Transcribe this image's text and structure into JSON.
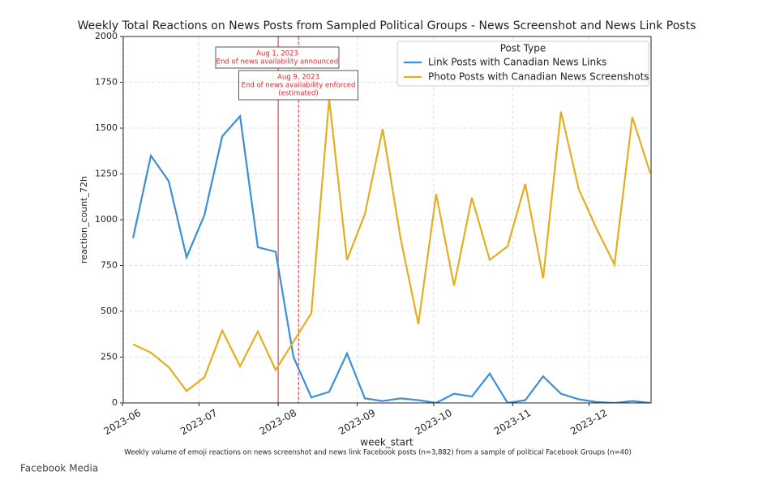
{
  "chart_data": {
    "type": "line",
    "title": "Weekly Total Reactions on News Posts from Sampled Political Groups - News Screenshot and News Link Posts",
    "x_label": "week_start",
    "y_label": "reaction_count_72h",
    "caption": "Weekly volume of emoji reactions on news screenshot and news link Facebook posts (n=3,882) from a sample of political Facebook Groups (n=40)",
    "source": "Facebook Media",
    "legend_title": "Post Type",
    "legend": "upper right",
    "grid": true,
    "categories": [
      null,
      null,
      null,
      null,
      null,
      null,
      null,
      null,
      null,
      null,
      null,
      null,
      null,
      null,
      null,
      null,
      null,
      null,
      null,
      null,
      null,
      null,
      null,
      null,
      null,
      null,
      null,
      null,
      null,
      null
    ],
    "xlim": [
      -0.55,
      29.05
    ],
    "xticks": [
      {
        "value": -0.59,
        "label": "2023-06"
      },
      {
        "value": 3.7,
        "label": "2023-07"
      },
      {
        "value": 8.14,
        "label": "2023-08"
      },
      {
        "value": 12.57,
        "label": "2023-09"
      },
      {
        "value": 16.86,
        "label": "2023-10"
      },
      {
        "value": 21.29,
        "label": "2023-11"
      },
      {
        "value": 25.57,
        "label": "2023-12"
      }
    ],
    "ylim": [
      0,
      2000
    ],
    "yticks": [
      0,
      250,
      500,
      750,
      1000,
      1250,
      1500,
      1750,
      2000
    ],
    "series": [
      {
        "name": "Link Posts with Canadian News Links",
        "color": "#3a8fd9",
        "values": [
          900,
          1350,
          1210,
          795,
          1025,
          1455,
          1565,
          850,
          825,
          250,
          30,
          60,
          270,
          25,
          10,
          25,
          15,
          0,
          50,
          35,
          160,
          0,
          15,
          145,
          50,
          20,
          5,
          0,
          10,
          0
        ]
      },
      {
        "name": "Photo Posts with Canadian News Screenshots",
        "color": "#e4ae1f",
        "values": [
          320,
          275,
          195,
          65,
          140,
          395,
          200,
          390,
          180,
          335,
          490,
          1660,
          780,
          1030,
          1495,
          900,
          430,
          1140,
          640,
          1120,
          780,
          855,
          1195,
          680,
          1590,
          1165,
          950,
          755,
          1560,
          1255
        ]
      }
    ],
    "annotations": [
      {
        "x": 8.14,
        "line": "solid",
        "color": "#e3262a",
        "lines": [
          "Aug 1, 2023",
          "End of news availability announced"
        ]
      },
      {
        "x": 9.28,
        "line": "dashed",
        "color": "#e3262a",
        "lines": [
          "Aug 9, 2023",
          "End of news availability enforced",
          "(estimated)"
        ]
      }
    ]
  }
}
